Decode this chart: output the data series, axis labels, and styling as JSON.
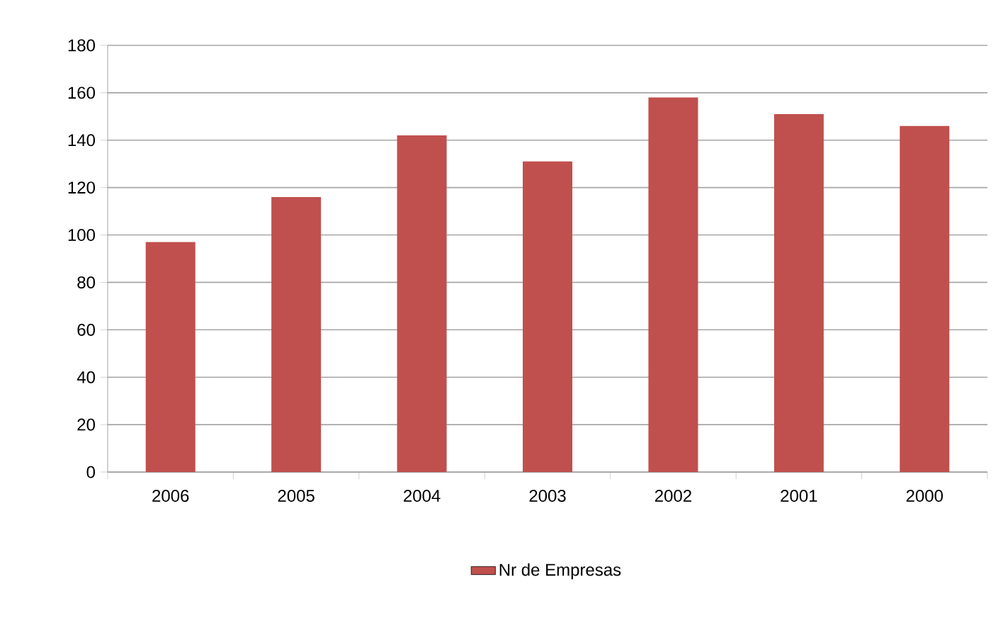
{
  "chart_data": {
    "type": "bar",
    "categories": [
      "2006",
      "2005",
      "2004",
      "2003",
      "2002",
      "2001",
      "2000"
    ],
    "series": [
      {
        "name": "Nr de Empresas",
        "color": "#c0504d",
        "values": [
          97,
          116,
          142,
          131,
          158,
          151,
          146
        ]
      }
    ],
    "ylim": [
      0,
      180
    ],
    "yticks": [
      0,
      20,
      40,
      60,
      80,
      100,
      120,
      140,
      160,
      180
    ],
    "grid": "y",
    "legend": "bottom"
  }
}
